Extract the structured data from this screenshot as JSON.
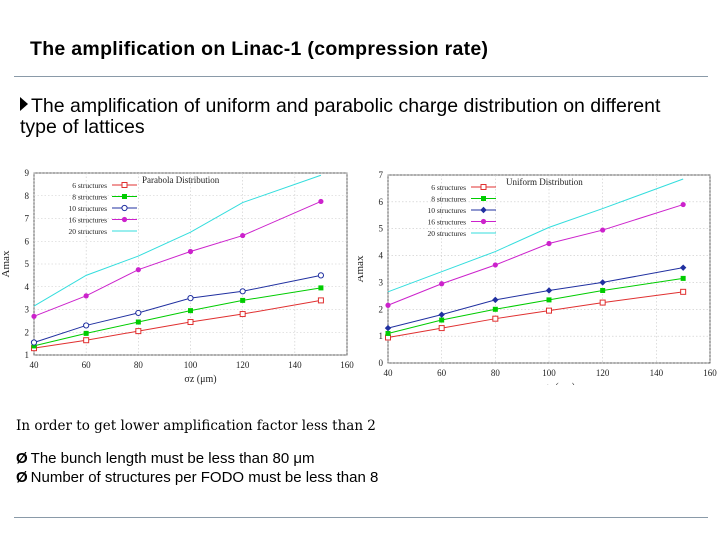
{
  "slide": {
    "title": "The amplification on Linac-1 (compression rate)",
    "bullet": "The amplification of uniform and parabolic charge distribution on different type of  lattices",
    "note": "In order to get lower amplification factor less than 2",
    "checks": [
      "The bunch length must be less than 80 μm",
      "Number of structures per FODO must be less than 8"
    ],
    "check_mark": "Ø"
  },
  "chart_data": [
    {
      "type": "line",
      "title": "Parabola Distribution",
      "xlabel": "σz (μm)",
      "ylabel": "Amax",
      "xlim": [
        40,
        160
      ],
      "ylim": [
        1,
        9
      ],
      "xticks": [
        40,
        60,
        80,
        100,
        120,
        140,
        160
      ],
      "yticks": [
        1,
        2,
        3,
        4,
        5,
        6,
        7,
        8,
        9
      ],
      "legend_position": "top-left",
      "x": [
        40,
        60,
        80,
        100,
        120,
        150
      ],
      "series": [
        {
          "name": "6 structures",
          "color": "#e03030",
          "marker": "square-open",
          "values": [
            1.3,
            1.65,
            2.05,
            2.45,
            2.8,
            3.4
          ]
        },
        {
          "name": "8 structures",
          "color": "#00cc00",
          "marker": "square",
          "values": [
            1.4,
            1.95,
            2.45,
            2.95,
            3.4,
            3.95
          ]
        },
        {
          "name": "10 structures",
          "color": "#2030a0",
          "marker": "circle-open",
          "values": [
            1.55,
            2.3,
            2.85,
            3.5,
            3.8,
            4.5
          ]
        },
        {
          "name": "16 structures",
          "color": "#cc22cc",
          "marker": "dot",
          "values": [
            2.7,
            3.6,
            4.75,
            5.55,
            6.25,
            7.75
          ]
        },
        {
          "name": "20 structures",
          "color": "#33dddd",
          "marker": "none",
          "values": [
            3.15,
            4.5,
            5.35,
            6.4,
            7.7,
            8.9
          ]
        }
      ]
    },
    {
      "type": "line",
      "title": "Uniform Distribution",
      "xlabel": "σz (μm)",
      "ylabel": "Amax",
      "xlim": [
        40,
        160
      ],
      "ylim": [
        0,
        7
      ],
      "xticks": [
        40,
        60,
        80,
        100,
        120,
        140,
        160
      ],
      "yticks": [
        0,
        1,
        2,
        3,
        4,
        5,
        6,
        7
      ],
      "legend_position": "top-left",
      "x": [
        40,
        60,
        80,
        100,
        120,
        150
      ],
      "series": [
        {
          "name": "6 structures",
          "color": "#e03030",
          "marker": "square-open",
          "values": [
            0.95,
            1.3,
            1.65,
            1.95,
            2.25,
            2.65
          ]
        },
        {
          "name": "8 structures",
          "color": "#00cc00",
          "marker": "square",
          "values": [
            1.1,
            1.6,
            2.0,
            2.35,
            2.7,
            3.15
          ]
        },
        {
          "name": "10 structures",
          "color": "#2030a0",
          "marker": "diamond",
          "values": [
            1.3,
            1.8,
            2.35,
            2.7,
            3.0,
            3.55
          ]
        },
        {
          "name": "16 structures",
          "color": "#cc22cc",
          "marker": "dot",
          "values": [
            2.15,
            2.95,
            3.65,
            4.45,
            4.95,
            5.9
          ]
        },
        {
          "name": "20 structures",
          "color": "#33dddd",
          "marker": "none",
          "values": [
            2.65,
            3.4,
            4.15,
            5.05,
            5.75,
            6.85
          ]
        }
      ]
    }
  ]
}
